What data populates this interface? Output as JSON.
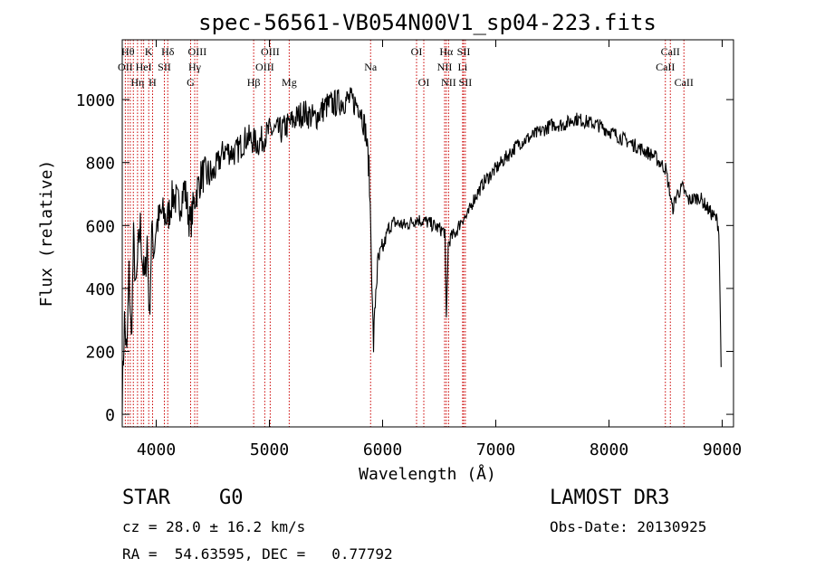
{
  "chart_data": {
    "type": "line",
    "title": "spec-56561-VB054N00V1_sp04-223.fits",
    "xlabel": "Wavelength (Å)",
    "ylabel": "Flux (relative)",
    "xlim": [
      3700,
      9100
    ],
    "ylim": [
      -40,
      1190
    ],
    "xticks": [
      4000,
      5000,
      6000,
      7000,
      8000,
      9000
    ],
    "yticks": [
      0,
      200,
      400,
      600,
      800,
      1000
    ],
    "line_color": "#000000",
    "marker_color": "#cc0000",
    "series": [
      {
        "name": "flux",
        "x": [
          3700,
          3720,
          3740,
          3760,
          3780,
          3800,
          3820,
          3840,
          3860,
          3880,
          3900,
          3920,
          3940,
          3960,
          3980,
          4000,
          4050,
          4100,
          4150,
          4200,
          4250,
          4300,
          4350,
          4400,
          4500,
          4600,
          4700,
          4800,
          4900,
          5000,
          5100,
          5200,
          5300,
          5400,
          5500,
          5600,
          5700,
          5800,
          5850,
          5880,
          5900,
          5910,
          5920,
          5940,
          5960,
          6000,
          6050,
          6100,
          6200,
          6300,
          6400,
          6500,
          6550,
          6563,
          6580,
          6600,
          6650,
          6700,
          6750,
          6800,
          6900,
          7000,
          7100,
          7200,
          7300,
          7400,
          7500,
          7600,
          7700,
          7800,
          7900,
          8000,
          8100,
          8200,
          8300,
          8400,
          8500,
          8540,
          8560,
          8600,
          8650,
          8700,
          8800,
          8900,
          8950,
          8970,
          8980,
          8990
        ],
        "y": [
          60,
          300,
          180,
          450,
          230,
          560,
          380,
          520,
          600,
          480,
          420,
          560,
          300,
          580,
          520,
          600,
          640,
          620,
          700,
          660,
          720,
          600,
          700,
          760,
          760,
          840,
          830,
          880,
          860,
          900,
          900,
          930,
          960,
          940,
          980,
          990,
          1000,
          980,
          900,
          780,
          540,
          330,
          220,
          400,
          480,
          520,
          590,
          610,
          600,
          620,
          610,
          590,
          580,
          300,
          540,
          560,
          580,
          620,
          630,
          680,
          740,
          780,
          820,
          860,
          880,
          900,
          920,
          920,
          940,
          930,
          920,
          900,
          880,
          860,
          840,
          820,
          780,
          700,
          650,
          700,
          720,
          680,
          690,
          640,
          620,
          590,
          400,
          150
        ]
      }
    ],
    "lines": [
      {
        "x": 3727,
        "label": "OII",
        "row": 2
      },
      {
        "x": 3750,
        "label": "Hθ",
        "row": 1
      },
      {
        "x": 3771,
        "label": "",
        "row": 2
      },
      {
        "x": 3798,
        "label": "",
        "row": 1
      },
      {
        "x": 3835,
        "label": "Hη",
        "row": 3
      },
      {
        "x": 3869,
        "label": "",
        "row": 2
      },
      {
        "x": 3889,
        "label": "HeI",
        "row": 2
      },
      {
        "x": 3934,
        "label": "K",
        "row": 1
      },
      {
        "x": 3968,
        "label": "H",
        "row": 3
      },
      {
        "x": 4072,
        "label": "SII",
        "row": 2
      },
      {
        "x": 4102,
        "label": "Hδ",
        "row": 1
      },
      {
        "x": 4304,
        "label": "G",
        "row": 3
      },
      {
        "x": 4340,
        "label": "Hγ",
        "row": 2
      },
      {
        "x": 4363,
        "label": "OIII",
        "row": 1
      },
      {
        "x": 4861,
        "label": "Hβ",
        "row": 3
      },
      {
        "x": 4959,
        "label": "OIII",
        "row": 2
      },
      {
        "x": 5007,
        "label": "OIII",
        "row": 1
      },
      {
        "x": 5175,
        "label": "Mg",
        "row": 3
      },
      {
        "x": 5894,
        "label": "Na",
        "row": 2
      },
      {
        "x": 6300,
        "label": "OI",
        "row": 1
      },
      {
        "x": 6364,
        "label": "OI",
        "row": 3
      },
      {
        "x": 6548,
        "label": "NII",
        "row": 2
      },
      {
        "x": 6563,
        "label": "Hα",
        "row": 1
      },
      {
        "x": 6583,
        "label": "NII",
        "row": 3
      },
      {
        "x": 6707,
        "label": "Li",
        "row": 2
      },
      {
        "x": 6716,
        "label": "SII",
        "row": 1
      },
      {
        "x": 6731,
        "label": "SII",
        "row": 3
      },
      {
        "x": 8498,
        "label": "CaII",
        "row": 2
      },
      {
        "x": 8542,
        "label": "CaII",
        "row": 1
      },
      {
        "x": 8662,
        "label": "CaII",
        "row": 3
      }
    ]
  },
  "info": {
    "object_class": "STAR",
    "subclass": "G0",
    "survey": "LAMOST DR3",
    "redshift": "cz = 28.0 ± 16.2 km/s",
    "obs_date": "Obs-Date: 20130925",
    "coords": "RA =  54.63595, DEC =   0.77792"
  }
}
